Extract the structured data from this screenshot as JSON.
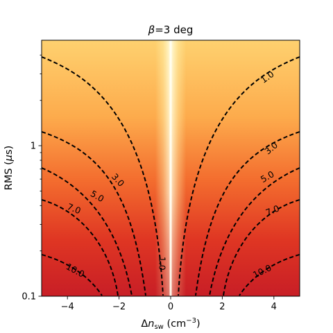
{
  "chart_data": {
    "type": "heatmap",
    "title": "β=3 deg",
    "title_parts": {
      "var": "β",
      "rest": "=3 deg"
    },
    "xlabel": "Δn_sw (cm⁻³)",
    "xlabel_parts": {
      "delta": "Δ",
      "n": "n",
      "sub": "sw",
      "open": " (cm",
      "sup": "−3",
      "close": ")"
    },
    "ylabel": "RMS (μs)",
    "ylabel_parts": {
      "pre": "RMS (",
      "mu": "μ",
      "post": "s)"
    },
    "xlim": [
      -5,
      5
    ],
    "ylim": [
      0.1,
      4.7
    ],
    "yscale": "log",
    "x_ticks": [
      -4,
      -2,
      0,
      2,
      4
    ],
    "x_tick_labels": [
      "−4",
      "−2",
      "0",
      "2",
      "4"
    ],
    "y_ticks": [
      0.1,
      1
    ],
    "y_tick_labels": [
      "0.1",
      "1"
    ],
    "colormap": [
      "#fff7bc",
      "#fee391",
      "#fec44f",
      "#fe9929",
      "#ec7014",
      "#d7301f",
      "#c81e26"
    ],
    "contour_levels": [
      1.0,
      3.0,
      5.0,
      7.0,
      10.0
    ],
    "contour_labels": [
      {
        "text": "1.0",
        "x": -0.33,
        "y": 0.165
      },
      {
        "text": "1.0",
        "x": 3.75,
        "y": 2.85
      },
      {
        "text": "3.0",
        "x": -2.05,
        "y": 0.59
      },
      {
        "text": "3.0",
        "x": 3.9,
        "y": 0.96
      },
      {
        "text": "5.0",
        "x": -2.85,
        "y": 0.46
      },
      {
        "text": "5.0",
        "x": 3.75,
        "y": 0.62
      },
      {
        "text": "7.0",
        "x": -3.75,
        "y": 0.38
      },
      {
        "text": "7.0",
        "x": 3.95,
        "y": 0.37
      },
      {
        "text": "10.0",
        "x": -3.7,
        "y": 0.148
      },
      {
        "text": "10.0",
        "x": 3.55,
        "y": 0.146
      }
    ],
    "grid": false
  }
}
